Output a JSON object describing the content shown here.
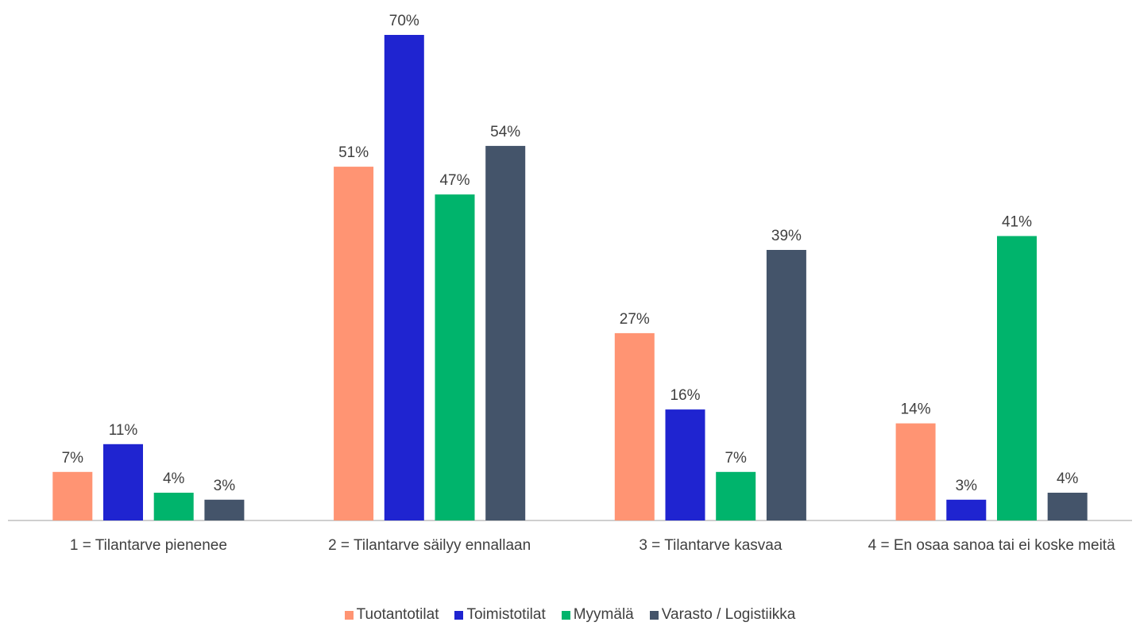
{
  "chart_data": {
    "type": "bar",
    "categories": [
      "1 = Tilantarve pienenee",
      "2 = Tilantarve säilyy ennallaan",
      "3 = Tilantarve kasvaa",
      "4 = En osaa sanoa tai ei koske meitä"
    ],
    "series": [
      {
        "name": "Tuotantotilat",
        "color": "#FF9473",
        "values": [
          7,
          51,
          27,
          14
        ],
        "labels": [
          "7%",
          "51%",
          "27%",
          "14%"
        ]
      },
      {
        "name": "Toimistotilat",
        "color": "#1F24D0",
        "values": [
          11,
          70,
          16,
          3
        ],
        "labels": [
          "11%",
          "70%",
          "16%",
          "3%"
        ]
      },
      {
        "name": "Myymälä",
        "color": "#00B46C",
        "values": [
          4,
          47,
          7,
          41
        ],
        "labels": [
          "4%",
          "47%",
          "7%",
          "41%"
        ]
      },
      {
        "name": "Varasto / Logistiikka",
        "color": "#44546A",
        "values": [
          3,
          54,
          39,
          4
        ],
        "labels": [
          "3%",
          "54%",
          "39%",
          "4%"
        ]
      }
    ],
    "ylim": [
      0,
      70
    ],
    "grid": false,
    "legend_position": "bottom",
    "title": "",
    "xlabel": "",
    "ylabel": ""
  }
}
